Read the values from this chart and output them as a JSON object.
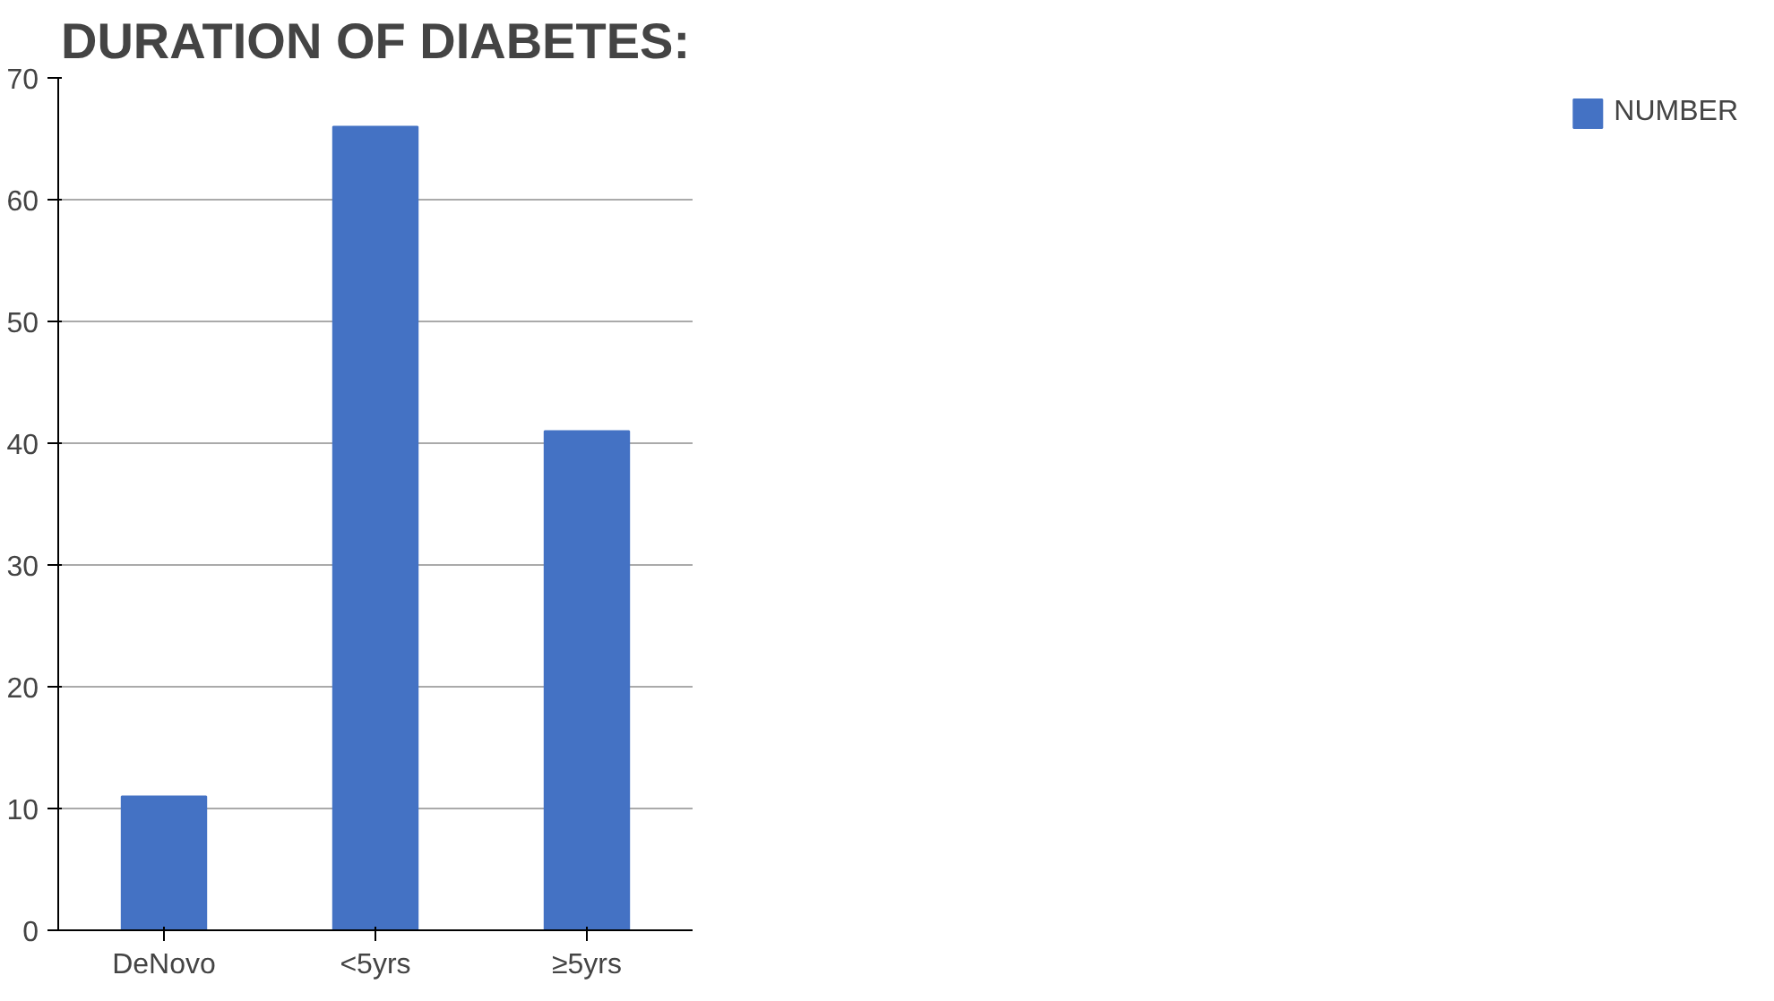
{
  "chart_data": {
    "type": "bar",
    "title": "DURATION OF DIABETES:",
    "categories": [
      "DeNovo",
      "<5yrs",
      "≥5yrs"
    ],
    "series": [
      {
        "name": "NUMBER",
        "color": "#4472c4",
        "values": [
          11,
          66,
          41
        ]
      }
    ],
    "ylim": [
      0,
      70
    ],
    "yticks": [
      0,
      10,
      20,
      30,
      40,
      50,
      60,
      70
    ],
    "grid": "y",
    "legend": "right"
  }
}
